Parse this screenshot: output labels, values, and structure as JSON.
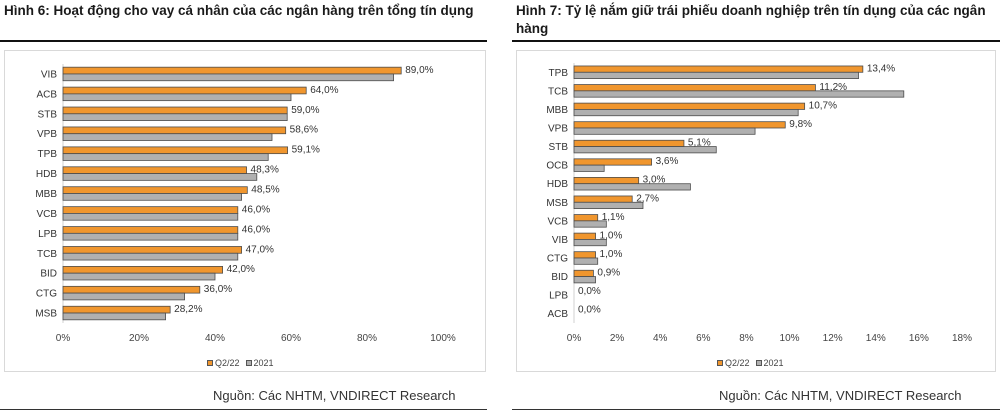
{
  "colors": {
    "q2_22": "#f0962e",
    "y2021": "#b0b0b0",
    "bar_border": "#4d4d4d",
    "zero_line": "#d0d0d0"
  },
  "legend": {
    "q2_22": "Q2/22",
    "y2021": "2021"
  },
  "left": {
    "title": "Hình 6: Hoạt động cho vay cá nhân của các ngân hàng trên tổng tín dụng",
    "source": "Nguồn: Các NHTM, VNDIRECT Research",
    "chart_data": {
      "type": "bar",
      "orientation": "horizontal",
      "categories": [
        "VIB",
        "ACB",
        "STB",
        "VPB",
        "TPB",
        "HDB",
        "MBB",
        "VCB",
        "LPB",
        "TCB",
        "BID",
        "CTG",
        "MSB"
      ],
      "series": [
        {
          "name": "Q2/22",
          "values": [
            89.0,
            64.0,
            59.0,
            58.6,
            59.1,
            48.3,
            48.5,
            46.0,
            46.0,
            47.0,
            42.0,
            36.0,
            28.2
          ]
        },
        {
          "name": "2021",
          "values": [
            87.0,
            60.0,
            59.0,
            55.0,
            54.0,
            51.0,
            47.0,
            46.0,
            46.0,
            46.0,
            40.0,
            32.0,
            27.0
          ]
        }
      ],
      "data_labels": [
        "89,0%",
        "64,0%",
        "59,0%",
        "58,6%",
        "59,1%",
        "48,3%",
        "48,5%",
        "46,0%",
        "46,0%",
        "47,0%",
        "42,0%",
        "36,0%",
        "28,2%"
      ],
      "xlim": [
        0,
        100
      ],
      "xticks": [
        0,
        20,
        40,
        60,
        80,
        100
      ],
      "xtick_labels": [
        "0%",
        "20%",
        "40%",
        "60%",
        "80%",
        "100%"
      ],
      "grid": false,
      "legend_position": "bottom"
    }
  },
  "right": {
    "title": "Hình 7: Tỷ lệ nắm giữ trái phiếu doanh nghiệp trên tín dụng của các ngân hàng",
    "source": "Nguồn: Các NHTM, VNDIRECT Research",
    "chart_data": {
      "type": "bar",
      "orientation": "horizontal",
      "categories": [
        "TPB",
        "TCB",
        "MBB",
        "VPB",
        "STB",
        "OCB",
        "HDB",
        "MSB",
        "VCB",
        "VIB",
        "CTG",
        "BID",
        "LPB",
        "ACB"
      ],
      "series": [
        {
          "name": "Q2/22",
          "values": [
            13.4,
            11.2,
            10.7,
            9.8,
            5.1,
            3.6,
            3.0,
            2.7,
            1.1,
            1.0,
            1.0,
            0.9,
            0.0,
            0.0
          ]
        },
        {
          "name": "2021",
          "values": [
            13.2,
            15.3,
            10.4,
            8.4,
            6.6,
            1.4,
            5.4,
            3.2,
            1.5,
            1.5,
            1.1,
            1.0,
            0.0,
            0.0
          ]
        }
      ],
      "data_labels": [
        "13,4%",
        "11,2%",
        "10,7%",
        "9,8%",
        "5,1%",
        "3,6%",
        "3,0%",
        "2,7%",
        "1,1%",
        "1,0%",
        "1,0%",
        "0,9%",
        "0,0%",
        "0,0%"
      ],
      "xlim": [
        0,
        18
      ],
      "xticks": [
        0,
        2,
        4,
        6,
        8,
        10,
        12,
        14,
        16,
        18
      ],
      "xtick_labels": [
        "0%",
        "2%",
        "4%",
        "6%",
        "8%",
        "10%",
        "12%",
        "14%",
        "16%",
        "18%"
      ],
      "grid": false,
      "legend_position": "bottom"
    }
  }
}
